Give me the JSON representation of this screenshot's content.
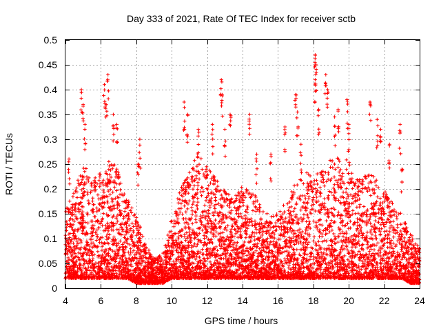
{
  "chart_data": {
    "type": "scatter",
    "title": "Day 333 of 2021, Rate Of TEC Index for receiver sctb",
    "xlabel": "GPS time / hours",
    "ylabel": "ROTI / TECUs",
    "xlim": [
      4,
      24
    ],
    "ylim": [
      0,
      0.5
    ],
    "xticks": [
      4,
      6,
      8,
      10,
      12,
      14,
      16,
      18,
      20,
      22,
      24
    ],
    "xtick_labels": [
      "4",
      "6",
      "8",
      "10",
      "12",
      "14",
      "16",
      "18",
      "20",
      "22",
      "24"
    ],
    "yticks": [
      0,
      0.05,
      0.1,
      0.15,
      0.2,
      0.25,
      0.3,
      0.35,
      0.4,
      0.45,
      0.5
    ],
    "ytick_labels": [
      "0",
      "0.05",
      "0.1",
      "0.15",
      "0.2",
      "0.25",
      "0.3",
      "0.35",
      "0.4",
      "0.45",
      "0.5"
    ],
    "grid": true,
    "marker": "+",
    "marker_color": "#ff0000",
    "envelope": {
      "x": [
        4.0,
        4.5,
        5.0,
        5.5,
        6.0,
        6.5,
        7.0,
        7.5,
        8.0,
        8.5,
        9.0,
        9.5,
        10.0,
        10.5,
        11.0,
        11.5,
        12.0,
        12.5,
        13.0,
        13.5,
        14.0,
        14.5,
        15.0,
        15.5,
        16.0,
        16.5,
        17.0,
        17.5,
        18.0,
        18.5,
        19.0,
        19.5,
        20.0,
        20.5,
        21.0,
        21.5,
        22.0,
        22.5,
        23.0,
        23.5,
        24.0
      ],
      "upper": [
        0.16,
        0.2,
        0.26,
        0.22,
        0.24,
        0.26,
        0.24,
        0.18,
        0.15,
        0.09,
        0.06,
        0.07,
        0.14,
        0.2,
        0.24,
        0.27,
        0.25,
        0.23,
        0.2,
        0.18,
        0.21,
        0.2,
        0.17,
        0.15,
        0.15,
        0.18,
        0.22,
        0.23,
        0.24,
        0.24,
        0.26,
        0.27,
        0.26,
        0.22,
        0.23,
        0.23,
        0.2,
        0.17,
        0.15,
        0.11,
        0.08
      ],
      "lower": [
        0.02,
        0.02,
        0.02,
        0.02,
        0.02,
        0.02,
        0.02,
        0.02,
        0.01,
        0.01,
        0.01,
        0.01,
        0.02,
        0.02,
        0.02,
        0.02,
        0.02,
        0.02,
        0.02,
        0.02,
        0.02,
        0.02,
        0.02,
        0.02,
        0.02,
        0.02,
        0.02,
        0.02,
        0.02,
        0.02,
        0.02,
        0.02,
        0.02,
        0.02,
        0.02,
        0.02,
        0.02,
        0.02,
        0.02,
        0.01,
        0.01
      ]
    },
    "peaks": [
      {
        "x": 4.2,
        "y": 0.26
      },
      {
        "x": 4.9,
        "y": 0.4
      },
      {
        "x": 5.0,
        "y": 0.37
      },
      {
        "x": 5.1,
        "y": 0.33
      },
      {
        "x": 6.2,
        "y": 0.41
      },
      {
        "x": 6.4,
        "y": 0.43
      },
      {
        "x": 6.3,
        "y": 0.37
      },
      {
        "x": 6.7,
        "y": 0.35
      },
      {
        "x": 6.9,
        "y": 0.33
      },
      {
        "x": 8.2,
        "y": 0.3
      },
      {
        "x": 8.1,
        "y": 0.25
      },
      {
        "x": 10.7,
        "y": 0.375
      },
      {
        "x": 10.9,
        "y": 0.35
      },
      {
        "x": 11.5,
        "y": 0.32
      },
      {
        "x": 12.3,
        "y": 0.33
      },
      {
        "x": 12.8,
        "y": 0.42
      },
      {
        "x": 12.85,
        "y": 0.39
      },
      {
        "x": 13.0,
        "y": 0.32
      },
      {
        "x": 13.3,
        "y": 0.35
      },
      {
        "x": 14.4,
        "y": 0.35
      },
      {
        "x": 14.8,
        "y": 0.27
      },
      {
        "x": 15.6,
        "y": 0.27
      },
      {
        "x": 16.4,
        "y": 0.325
      },
      {
        "x": 17.0,
        "y": 0.39
      },
      {
        "x": 17.1,
        "y": 0.355
      },
      {
        "x": 17.3,
        "y": 0.29
      },
      {
        "x": 18.1,
        "y": 0.47
      },
      {
        "x": 18.15,
        "y": 0.45
      },
      {
        "x": 18.1,
        "y": 0.42
      },
      {
        "x": 18.3,
        "y": 0.36
      },
      {
        "x": 18.7,
        "y": 0.43
      },
      {
        "x": 18.8,
        "y": 0.4
      },
      {
        "x": 19.2,
        "y": 0.345
      },
      {
        "x": 19.4,
        "y": 0.36
      },
      {
        "x": 19.9,
        "y": 0.38
      },
      {
        "x": 20.0,
        "y": 0.33
      },
      {
        "x": 21.2,
        "y": 0.375
      },
      {
        "x": 21.6,
        "y": 0.34
      },
      {
        "x": 21.8,
        "y": 0.32
      },
      {
        "x": 22.3,
        "y": 0.29
      },
      {
        "x": 22.9,
        "y": 0.33
      },
      {
        "x": 23.0,
        "y": 0.24
      }
    ]
  }
}
